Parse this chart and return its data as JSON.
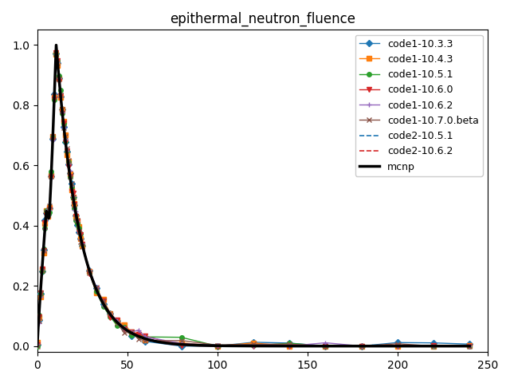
{
  "title": "epithermal_neutron_fluence",
  "xlim": [
    0,
    250
  ],
  "ylim": [
    -0.02,
    1.05
  ],
  "xticks": [
    0,
    50,
    100,
    150,
    200,
    250
  ],
  "yticks": [
    0.0,
    0.2,
    0.4,
    0.6,
    0.8,
    1.0
  ],
  "series": [
    {
      "label": "code1-10.3.3",
      "color": "#1f77b4",
      "linestyle": "-",
      "marker": "D",
      "markersize": 4,
      "linewidth": 1.0,
      "zorder": 3
    },
    {
      "label": "code1-10.4.3",
      "color": "#ff7f0e",
      "linestyle": "-",
      "marker": "s",
      "markersize": 4,
      "linewidth": 1.0,
      "zorder": 3
    },
    {
      "label": "code1-10.5.1",
      "color": "#2ca02c",
      "linestyle": "-",
      "marker": "o",
      "markersize": 4,
      "linewidth": 1.0,
      "zorder": 3
    },
    {
      "label": "code1-10.6.0",
      "color": "#d62728",
      "linestyle": "-",
      "marker": "v",
      "markersize": 4,
      "linewidth": 1.0,
      "zorder": 3
    },
    {
      "label": "code1-10.6.2",
      "color": "#9467bd",
      "linestyle": "-",
      "marker": "+",
      "markersize": 5,
      "linewidth": 1.0,
      "zorder": 3
    },
    {
      "label": "code1-10.7.0.beta",
      "color": "#8c564b",
      "linestyle": "-",
      "marker": "x",
      "markersize": 4,
      "linewidth": 1.0,
      "zorder": 3
    },
    {
      "label": "code2-10.5.1",
      "color": "#1f77b4",
      "linestyle": "--",
      "marker": "None",
      "markersize": 0,
      "linewidth": 1.2,
      "zorder": 4
    },
    {
      "label": "code2-10.6.2",
      "color": "#d62728",
      "linestyle": "--",
      "marker": "None",
      "markersize": 0,
      "linewidth": 1.2,
      "zorder": 4
    },
    {
      "label": "mcnp",
      "color": "#000000",
      "linestyle": "-",
      "marker": "None",
      "markersize": 0,
      "linewidth": 2.5,
      "zorder": 5
    }
  ]
}
